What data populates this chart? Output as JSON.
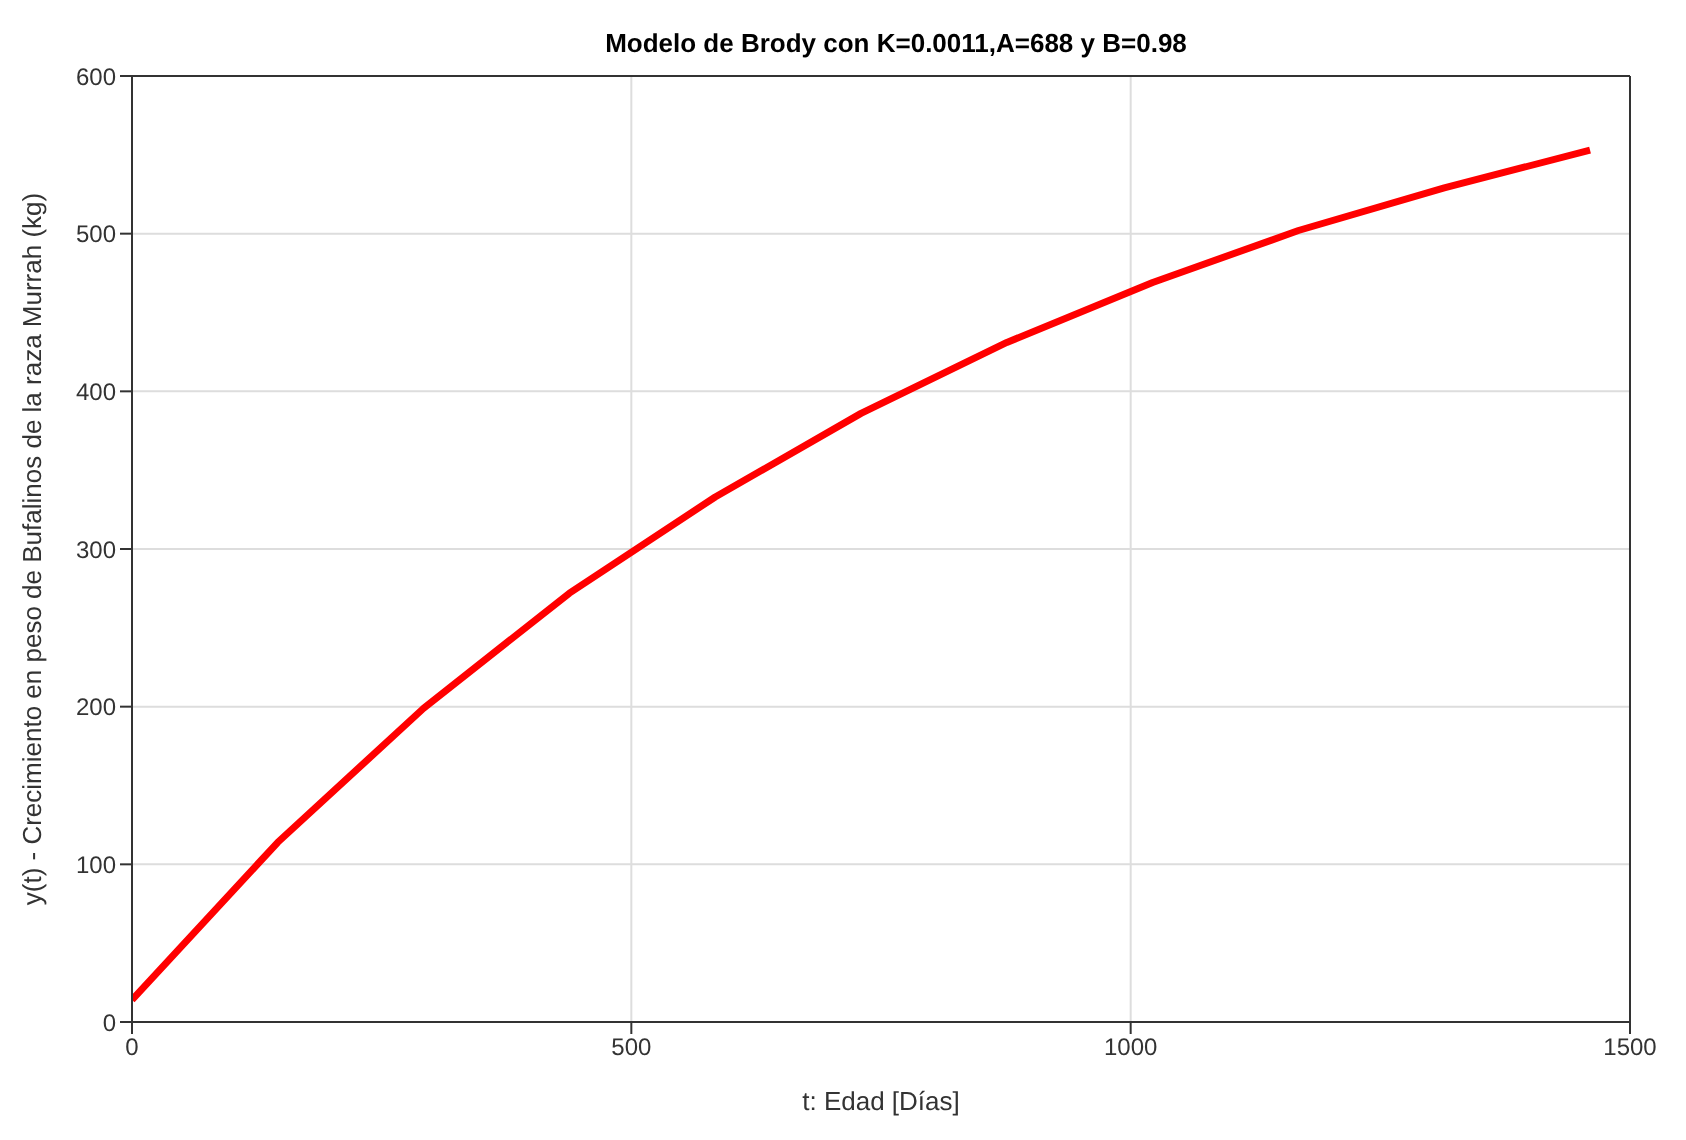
{
  "chart_data": {
    "type": "line",
    "title": "Modelo de Brody con K=0.0011,A=688 y B=0.98",
    "xlabel": "t: Edad [Días]",
    "ylabel": "y(t) - Crecimiento en peso de Bufalinos de la raza Murrah (kg)",
    "x": [
      0,
      146,
      292,
      438,
      584,
      730,
      876,
      1022,
      1168,
      1314,
      1460
    ],
    "series": [
      {
        "color": "#ff0000",
        "values": [
          14,
          114,
          199,
          272,
          333,
          386,
          431,
          469,
          502,
          529,
          553
        ]
      }
    ],
    "xlim": [
      0,
      1500
    ],
    "xticks": [
      0,
      500,
      1000,
      1500
    ],
    "ylim": [
      0,
      600
    ],
    "yticks": [
      0,
      100,
      200,
      300,
      400,
      500,
      600
    ],
    "grid": true,
    "legend": false,
    "marker": "none",
    "line_style": "solid"
  }
}
